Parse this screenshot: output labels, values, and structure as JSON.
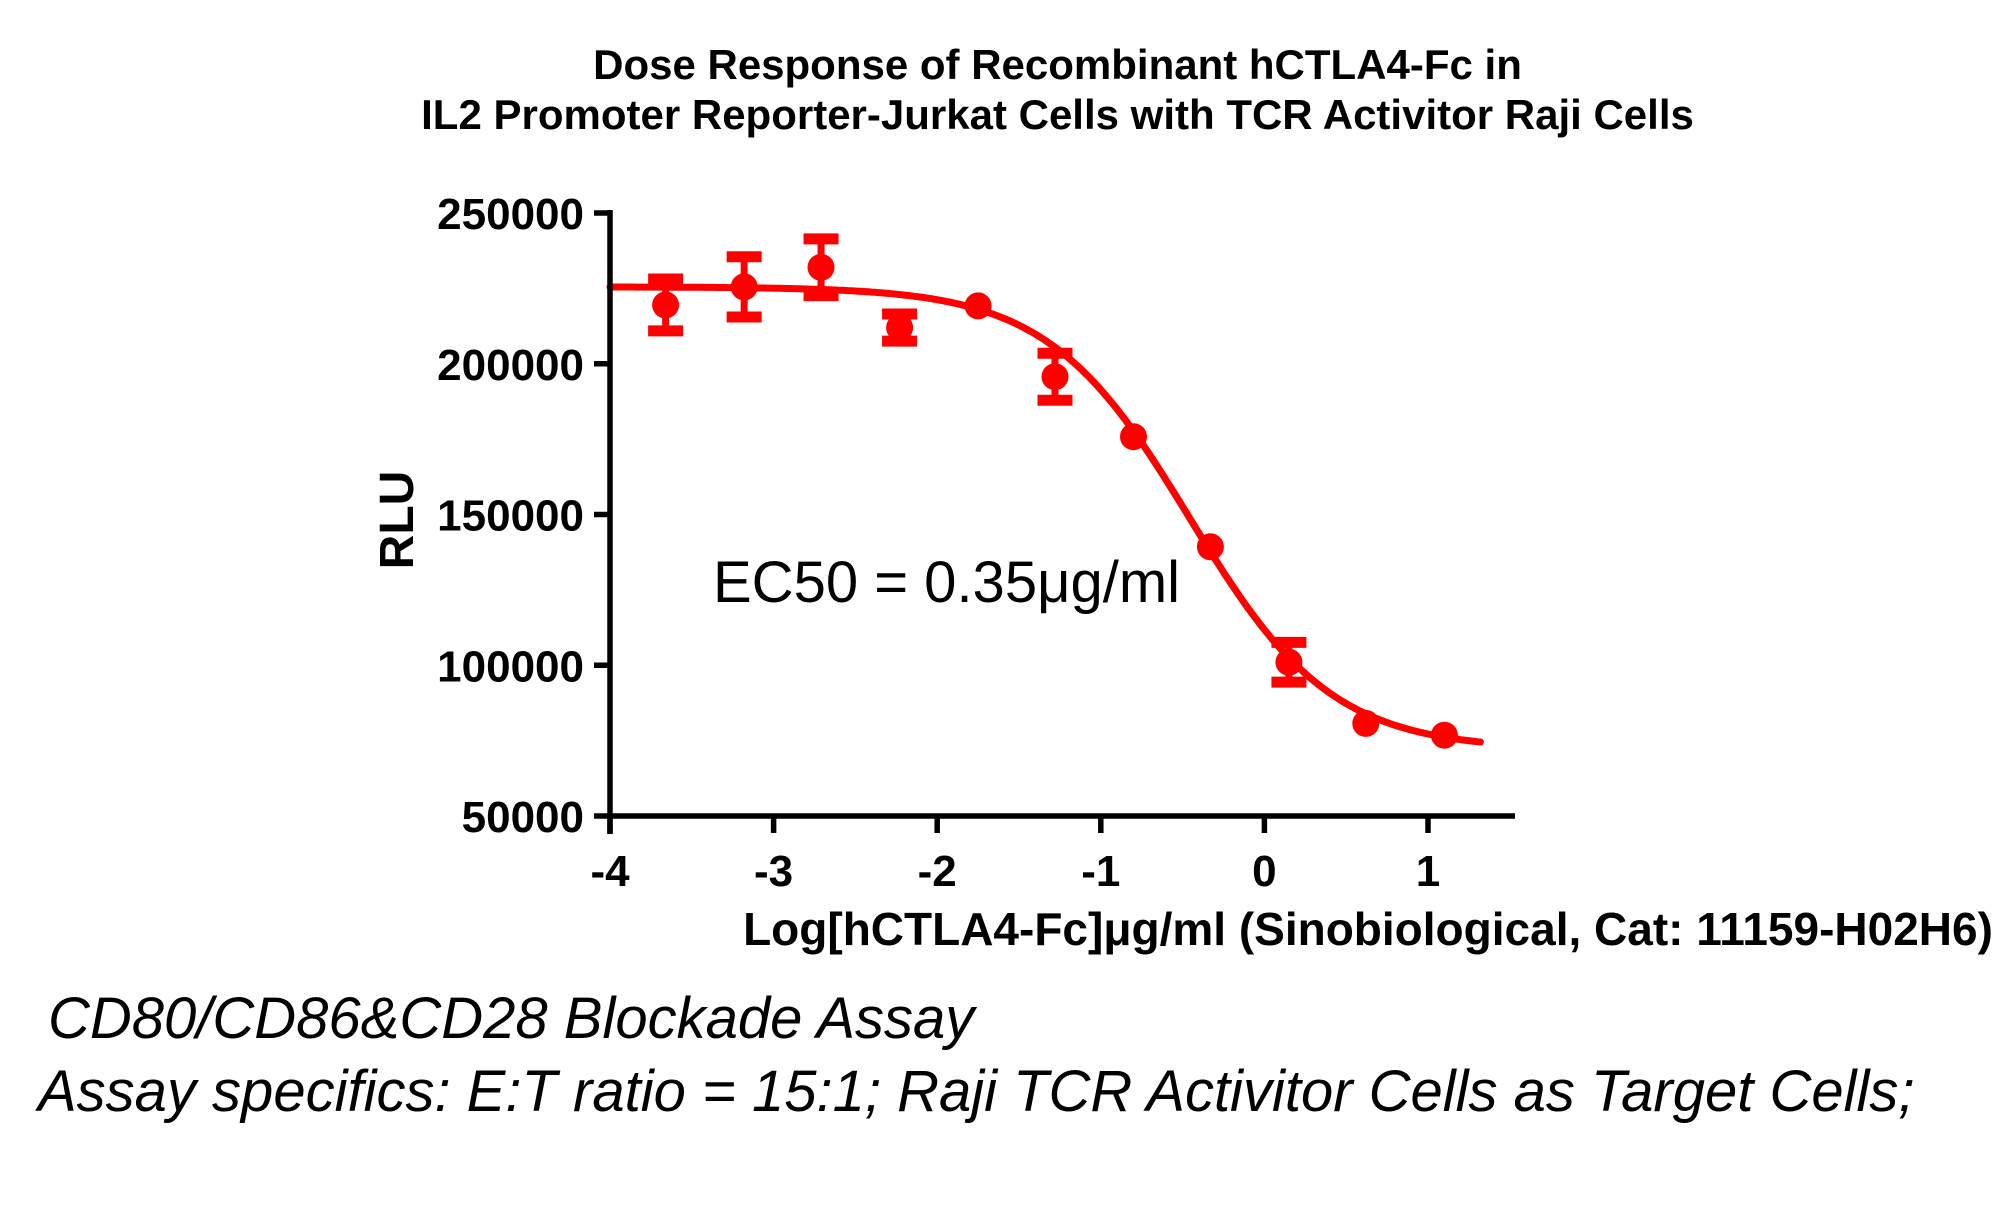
{
  "title": {
    "line1": "Dose Response of Recombinant hCTLA4-Fc in",
    "line2": "IL2 Promoter Reporter-Jurkat Cells with TCR Activitor Raji Cells"
  },
  "annotation": {
    "ec50_label": "EC50 = 0.35μg/ml"
  },
  "footer": {
    "line1": "CD80/CD86&CD28 Blockade Assay",
    "line2": "Assay specifics: E:T ratio = 15:1; Raji TCR Activitor Cells as Target Cells;"
  },
  "colors": {
    "series": "#FF0000",
    "axis": "#000000",
    "text": "#000000"
  },
  "chart_data": {
    "type": "scatter",
    "subtype": "dose-response-curve-with-error-bars",
    "title": "Dose Response of Recombinant hCTLA4-Fc in IL2 Promoter Reporter-Jurkat Cells with TCR Activitor Raji Cells",
    "xlabel": "Log[hCTLA4-Fc]μg/ml (Sinobiological, Cat: 11159-H02H6)",
    "ylabel": "RLU",
    "xlim": [
      -4,
      1.53
    ],
    "ylim": [
      50000,
      250000
    ],
    "x_ticks": [
      -4,
      -3,
      -2,
      -1,
      0,
      1
    ],
    "y_ticks": [
      250000,
      200000,
      150000,
      100000,
      50000
    ],
    "grid": false,
    "legend": "none",
    "series": [
      {
        "name": "hCTLA4-Fc",
        "marker": "circle",
        "x_log_ug_ml": [
          -3.66,
          -3.18,
          -2.71,
          -2.23,
          -1.75,
          -1.28,
          -0.8,
          -0.33,
          0.15,
          0.62,
          1.1
        ],
        "y_rlu": [
          219500,
          225500,
          232000,
          212000,
          219200,
          195700,
          175800,
          139300,
          101000,
          80700,
          76800
        ],
        "y_err": [
          8600,
          10000,
          9400,
          4500,
          0,
          7800,
          0,
          0,
          6600,
          0,
          0
        ]
      }
    ],
    "curve_fit": {
      "model": "four-parameter-logistic",
      "top": 225500,
      "bottom": 72000,
      "log_ec50": -0.456,
      "hill_slope": 1.0,
      "ec50_ug_ml": 0.35,
      "x_range": [
        -4,
        1.32
      ]
    },
    "annotation_text": "EC50 = 0.35μg/ml"
  }
}
